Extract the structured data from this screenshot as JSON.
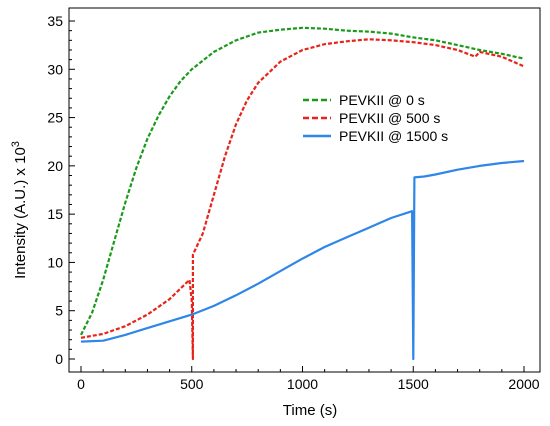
{
  "chart_data": {
    "type": "line",
    "title": "",
    "xlabel": "Time (s)",
    "ylabel": "Intensity (A.U.) x 10",
    "ylabel_superscript": "3",
    "xlim": [
      0,
      2000
    ],
    "ylim": [
      0,
      35
    ],
    "xticks": [
      0,
      500,
      1000,
      1500,
      2000
    ],
    "yticks": [
      0,
      5,
      10,
      15,
      20,
      25,
      30,
      35
    ],
    "grid": false,
    "legend_position": "upper-right",
    "series": [
      {
        "name": "PEVKII @ 0 s",
        "color": "#1a9a1a",
        "style": "dashed",
        "points": [
          [
            0,
            2.5
          ],
          [
            50,
            4.8
          ],
          [
            100,
            8.2
          ],
          [
            150,
            12.2
          ],
          [
            200,
            16.2
          ],
          [
            250,
            19.8
          ],
          [
            300,
            22.8
          ],
          [
            350,
            25.2
          ],
          [
            400,
            27.2
          ],
          [
            450,
            28.8
          ],
          [
            500,
            30.0
          ],
          [
            600,
            31.8
          ],
          [
            700,
            33.0
          ],
          [
            800,
            33.8
          ],
          [
            900,
            34.1
          ],
          [
            1000,
            34.3
          ],
          [
            1100,
            34.2
          ],
          [
            1200,
            34.0
          ],
          [
            1300,
            33.9
          ],
          [
            1400,
            33.7
          ],
          [
            1500,
            33.3
          ],
          [
            1600,
            33.0
          ],
          [
            1700,
            32.5
          ],
          [
            1800,
            32.0
          ],
          [
            1900,
            31.6
          ],
          [
            2000,
            31.1
          ]
        ]
      },
      {
        "name": "PEVKII @ 500 s",
        "color": "#e8231a",
        "style": "dashed",
        "points": [
          [
            0,
            2.2
          ],
          [
            100,
            2.6
          ],
          [
            200,
            3.4
          ],
          [
            300,
            4.6
          ],
          [
            400,
            6.2
          ],
          [
            490,
            8.2
          ],
          [
            500,
            6.0
          ],
          [
            505,
            0.0
          ],
          [
            505,
            10.8
          ],
          [
            550,
            13.0
          ],
          [
            600,
            17.0
          ],
          [
            650,
            21.0
          ],
          [
            700,
            24.3
          ],
          [
            750,
            26.8
          ],
          [
            800,
            28.6
          ],
          [
            900,
            30.8
          ],
          [
            1000,
            32.0
          ],
          [
            1100,
            32.6
          ],
          [
            1200,
            32.9
          ],
          [
            1300,
            33.1
          ],
          [
            1400,
            33.0
          ],
          [
            1500,
            32.8
          ],
          [
            1600,
            32.5
          ],
          [
            1700,
            32.0
          ],
          [
            1780,
            31.3
          ],
          [
            1800,
            31.8
          ],
          [
            1900,
            31.3
          ],
          [
            2000,
            30.3
          ]
        ]
      },
      {
        "name": "PEVKII @ 1500 s",
        "color": "#2e86e8",
        "style": "solid",
        "points": [
          [
            0,
            1.8
          ],
          [
            100,
            1.9
          ],
          [
            200,
            2.5
          ],
          [
            300,
            3.2
          ],
          [
            400,
            3.9
          ],
          [
            500,
            4.6
          ],
          [
            600,
            5.5
          ],
          [
            700,
            6.6
          ],
          [
            800,
            7.8
          ],
          [
            900,
            9.1
          ],
          [
            1000,
            10.4
          ],
          [
            1100,
            11.6
          ],
          [
            1200,
            12.6
          ],
          [
            1300,
            13.6
          ],
          [
            1400,
            14.6
          ],
          [
            1495,
            15.3
          ],
          [
            1500,
            0.0
          ],
          [
            1505,
            18.8
          ],
          [
            1550,
            18.9
          ],
          [
            1600,
            19.1
          ],
          [
            1700,
            19.6
          ],
          [
            1800,
            20.0
          ],
          [
            1900,
            20.3
          ],
          [
            2000,
            20.5
          ]
        ]
      }
    ]
  }
}
